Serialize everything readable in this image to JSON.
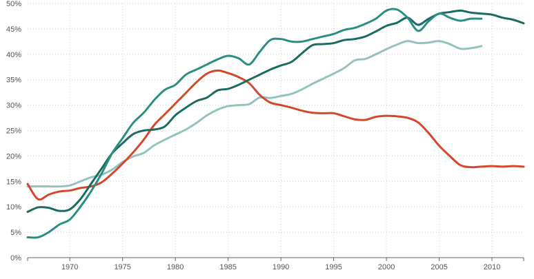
{
  "chart_data": {
    "type": "line",
    "title": "",
    "xlabel": "",
    "ylabel": "",
    "xlim": [
      1966,
      2013
    ],
    "ylim": [
      0,
      50
    ],
    "grid": true,
    "x_ticks": [
      1970,
      1975,
      1980,
      1985,
      1990,
      1995,
      2000,
      2005,
      2010
    ],
    "x_tick_labels": [
      "1970",
      "1975",
      "1980",
      "1985",
      "1990",
      "1995",
      "2000",
      "2005",
      "2010"
    ],
    "y_ticks": [
      0,
      5,
      10,
      15,
      20,
      25,
      30,
      35,
      40,
      45,
      50
    ],
    "y_tick_labels": [
      "0%",
      "5%",
      "10%",
      "15%",
      "20%",
      "25%",
      "30%",
      "35%",
      "40%",
      "45%",
      "50%"
    ],
    "series": [
      {
        "color": "#1a6b60",
        "x": [
          1966,
          1967,
          1968,
          1969,
          1970,
          1971,
          1972,
          1973,
          1974,
          1975,
          1976,
          1977,
          1978,
          1979,
          1980,
          1981,
          1982,
          1983,
          1984,
          1985,
          1986,
          1987,
          1988,
          1989,
          1990,
          1991,
          1992,
          1993,
          1994,
          1995,
          1996,
          1997,
          1998,
          1999,
          2000,
          2001,
          2002,
          2003,
          2004,
          2005,
          2006,
          2007,
          2008,
          2009,
          2010,
          2011,
          2012,
          2013
        ],
        "y": [
          9.0,
          9.9,
          9.8,
          9.2,
          9.5,
          11.5,
          14.5,
          17.5,
          20.5,
          22.5,
          24.3,
          25.0,
          25.2,
          25.8,
          28.0,
          29.5,
          30.8,
          31.5,
          32.9,
          33.2,
          34.0,
          35.0,
          36.0,
          37.0,
          37.8,
          38.5,
          40.2,
          41.8,
          42.0,
          42.2,
          42.8,
          43.0,
          43.5,
          44.5,
          45.6,
          46.2,
          47.2,
          45.8,
          47.0,
          48.0,
          48.3,
          48.6,
          48.2,
          48.0,
          47.8,
          47.2,
          46.8,
          46.1
        ]
      },
      {
        "color": "#2a8f82",
        "x": [
          1966,
          1967,
          1968,
          1969,
          1970,
          1971,
          1972,
          1973,
          1974,
          1975,
          1976,
          1977,
          1978,
          1979,
          1980,
          1981,
          1982,
          1983,
          1984,
          1985,
          1986,
          1987,
          1988,
          1989,
          1990,
          1991,
          1992,
          1993,
          1994,
          1995,
          1996,
          1997,
          1998,
          1999,
          2000,
          2001,
          2002,
          2003,
          2004,
          2005,
          2006,
          2007,
          2008,
          2009
        ],
        "y": [
          4.0,
          4.0,
          5.0,
          6.5,
          7.5,
          10.0,
          13.0,
          16.5,
          20.5,
          23.5,
          26.5,
          28.5,
          31.0,
          33.0,
          34.0,
          36.0,
          37.0,
          38.0,
          39.0,
          39.7,
          39.2,
          38.0,
          40.5,
          42.8,
          43.0,
          42.5,
          42.5,
          43.0,
          43.5,
          44.0,
          44.8,
          45.2,
          46.0,
          47.0,
          48.6,
          48.8,
          47.2,
          44.6,
          46.5,
          48.0,
          47.2,
          46.6,
          47.0,
          47.0
        ]
      },
      {
        "color": "#d4472b",
        "x": [
          1966,
          1967,
          1968,
          1969,
          1970,
          1971,
          1972,
          1973,
          1974,
          1975,
          1976,
          1977,
          1978,
          1979,
          1980,
          1981,
          1982,
          1983,
          1984,
          1985,
          1986,
          1987,
          1988,
          1989,
          1990,
          1991,
          1992,
          1993,
          1994,
          1995,
          1996,
          1997,
          1998,
          1999,
          2000,
          2001,
          2002,
          2003,
          2004,
          2005,
          2006,
          2007,
          2008,
          2009,
          2010,
          2011,
          2012,
          2013
        ],
        "y": [
          14.5,
          11.5,
          12.4,
          13.0,
          13.2,
          13.7,
          14.0,
          14.8,
          16.5,
          18.5,
          20.7,
          23.2,
          26.1,
          28.2,
          30.3,
          32.4,
          34.5,
          36.2,
          36.8,
          36.3,
          35.5,
          34.3,
          32.0,
          30.5,
          30.0,
          29.5,
          28.9,
          28.5,
          28.4,
          28.4,
          27.8,
          27.2,
          27.1,
          27.7,
          27.9,
          27.8,
          27.5,
          26.6,
          24.5,
          22.0,
          20.0,
          18.2,
          17.8,
          17.9,
          18.0,
          17.9,
          18.0,
          17.9
        ]
      },
      {
        "color": "#94c3bf",
        "x": [
          1966,
          1967,
          1968,
          1969,
          1970,
          1971,
          1972,
          1973,
          1974,
          1975,
          1976,
          1977,
          1978,
          1979,
          1980,
          1981,
          1982,
          1983,
          1984,
          1985,
          1986,
          1987,
          1988,
          1989,
          1990,
          1991,
          1992,
          1993,
          1994,
          1995,
          1996,
          1997,
          1998,
          1999,
          2000,
          2001,
          2002,
          2003,
          2004,
          2005,
          2006,
          2007,
          2008,
          2009
        ],
        "y": [
          14.0,
          14.0,
          14.0,
          14.0,
          14.2,
          15.0,
          15.8,
          16.3,
          17.3,
          18.8,
          19.9,
          20.6,
          22.1,
          23.2,
          24.2,
          25.2,
          26.5,
          28.0,
          29.1,
          29.8,
          30.0,
          30.2,
          31.5,
          31.4,
          31.8,
          32.2,
          33.1,
          34.2,
          35.2,
          36.2,
          37.3,
          38.8,
          39.1,
          40.0,
          41.0,
          41.9,
          42.6,
          42.2,
          42.3,
          42.6,
          42.0,
          41.1,
          41.2,
          41.6
        ]
      }
    ]
  }
}
